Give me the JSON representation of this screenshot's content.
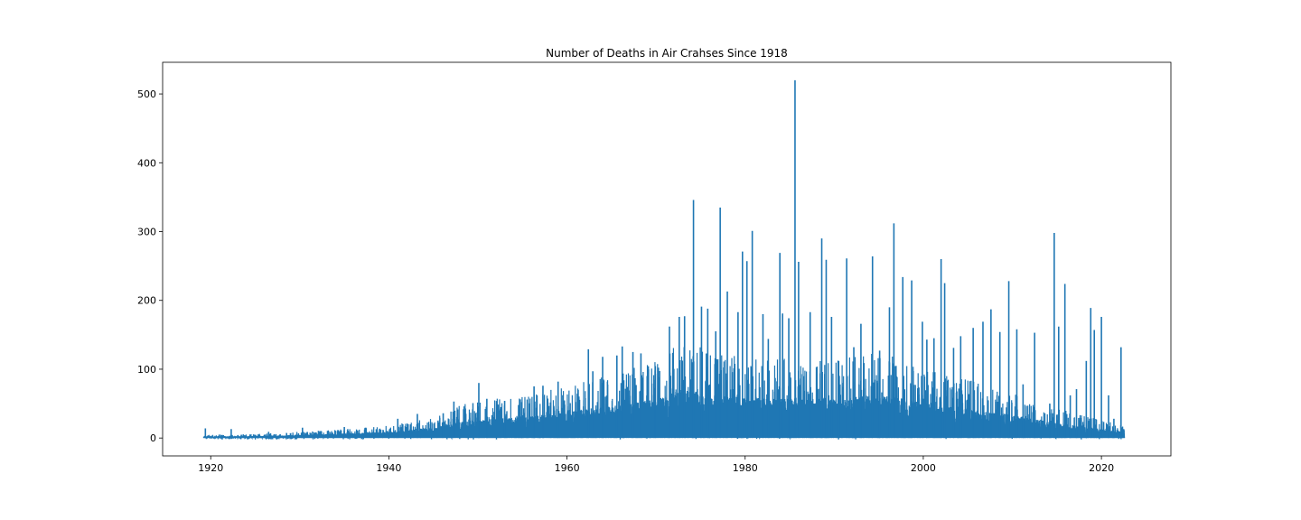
{
  "chart_data": {
    "type": "line",
    "title": "Number of Deaths in Air Crahses Since 1918",
    "xlabel": "",
    "ylabel": "",
    "xlim": [
      1914.6,
      2027.8
    ],
    "ylim": [
      -26,
      546
    ],
    "xticks": [
      1920,
      1940,
      1960,
      1980,
      2000,
      2020
    ],
    "xtick_labels": [
      "1920",
      "1940",
      "1960",
      "1980",
      "2000",
      "2020"
    ],
    "yticks": [
      0,
      100,
      200,
      300,
      400,
      500
    ],
    "ytick_labels": [
      "0",
      "100",
      "200",
      "300",
      "400",
      "500"
    ],
    "grid": false,
    "legend": "none",
    "series_color": "#1f77b4",
    "x_range": [
      1919.2,
      2022.6
    ],
    "peaks": [
      {
        "x": 1919.4,
        "y": 14
      },
      {
        "x": 1922.3,
        "y": 13
      },
      {
        "x": 1926.5,
        "y": 9
      },
      {
        "x": 1930.3,
        "y": 15
      },
      {
        "x": 1935.0,
        "y": 16
      },
      {
        "x": 1941.0,
        "y": 28
      },
      {
        "x": 1943.2,
        "y": 35
      },
      {
        "x": 1946.1,
        "y": 36
      },
      {
        "x": 1947.3,
        "y": 53
      },
      {
        "x": 1950.1,
        "y": 80
      },
      {
        "x": 1951.0,
        "y": 57
      },
      {
        "x": 1953.0,
        "y": 54
      },
      {
        "x": 1956.3,
        "y": 75
      },
      {
        "x": 1957.3,
        "y": 76
      },
      {
        "x": 1959.0,
        "y": 82
      },
      {
        "x": 1962.4,
        "y": 129
      },
      {
        "x": 1962.9,
        "y": 97
      },
      {
        "x": 1964.0,
        "y": 118
      },
      {
        "x": 1965.6,
        "y": 120
      },
      {
        "x": 1966.2,
        "y": 133
      },
      {
        "x": 1967.4,
        "y": 125
      },
      {
        "x": 1968.3,
        "y": 123
      },
      {
        "x": 1969.9,
        "y": 98
      },
      {
        "x": 1971.5,
        "y": 162
      },
      {
        "x": 1972.6,
        "y": 176
      },
      {
        "x": 1973.2,
        "y": 177
      },
      {
        "x": 1974.2,
        "y": 346
      },
      {
        "x": 1975.1,
        "y": 191
      },
      {
        "x": 1975.8,
        "y": 188
      },
      {
        "x": 1976.7,
        "y": 155
      },
      {
        "x": 1977.2,
        "y": 335
      },
      {
        "x": 1978.0,
        "y": 213
      },
      {
        "x": 1979.2,
        "y": 183
      },
      {
        "x": 1979.7,
        "y": 271
      },
      {
        "x": 1980.2,
        "y": 257
      },
      {
        "x": 1980.8,
        "y": 301
      },
      {
        "x": 1982.0,
        "y": 180
      },
      {
        "x": 1982.6,
        "y": 144
      },
      {
        "x": 1983.9,
        "y": 269
      },
      {
        "x": 1984.2,
        "y": 181
      },
      {
        "x": 1984.9,
        "y": 174
      },
      {
        "x": 1985.6,
        "y": 520
      },
      {
        "x": 1986.0,
        "y": 256
      },
      {
        "x": 1987.3,
        "y": 183
      },
      {
        "x": 1988.6,
        "y": 290
      },
      {
        "x": 1989.1,
        "y": 259
      },
      {
        "x": 1989.7,
        "y": 176
      },
      {
        "x": 1990.5,
        "y": 112
      },
      {
        "x": 1991.4,
        "y": 261
      },
      {
        "x": 1992.2,
        "y": 132
      },
      {
        "x": 1993.0,
        "y": 166
      },
      {
        "x": 1994.3,
        "y": 264
      },
      {
        "x": 1995.1,
        "y": 127
      },
      {
        "x": 1996.2,
        "y": 190
      },
      {
        "x": 1996.7,
        "y": 312
      },
      {
        "x": 1997.7,
        "y": 234
      },
      {
        "x": 1998.7,
        "y": 229
      },
      {
        "x": 1999.9,
        "y": 169
      },
      {
        "x": 2000.4,
        "y": 143
      },
      {
        "x": 2001.2,
        "y": 145
      },
      {
        "x": 2002.0,
        "y": 260
      },
      {
        "x": 2002.4,
        "y": 225
      },
      {
        "x": 2003.4,
        "y": 131
      },
      {
        "x": 2004.2,
        "y": 148
      },
      {
        "x": 2005.6,
        "y": 160
      },
      {
        "x": 2006.7,
        "y": 169
      },
      {
        "x": 2007.6,
        "y": 187
      },
      {
        "x": 2008.6,
        "y": 154
      },
      {
        "x": 2009.6,
        "y": 228
      },
      {
        "x": 2010.5,
        "y": 158
      },
      {
        "x": 2011.2,
        "y": 78
      },
      {
        "x": 2012.5,
        "y": 153
      },
      {
        "x": 2014.2,
        "y": 50
      },
      {
        "x": 2014.7,
        "y": 298
      },
      {
        "x": 2015.2,
        "y": 162
      },
      {
        "x": 2015.9,
        "y": 224
      },
      {
        "x": 2016.5,
        "y": 62
      },
      {
        "x": 2017.2,
        "y": 71
      },
      {
        "x": 2018.3,
        "y": 112
      },
      {
        "x": 2018.8,
        "y": 189
      },
      {
        "x": 2019.2,
        "y": 157
      },
      {
        "x": 2020.0,
        "y": 176
      },
      {
        "x": 2020.8,
        "y": 62
      },
      {
        "x": 2021.4,
        "y": 28
      },
      {
        "x": 2022.2,
        "y": 132
      }
    ],
    "envelope": [
      {
        "x": 1919.2,
        "y": 3
      },
      {
        "x": 1925,
        "y": 4
      },
      {
        "x": 1930,
        "y": 6
      },
      {
        "x": 1935,
        "y": 9
      },
      {
        "x": 1940,
        "y": 12
      },
      {
        "x": 1945,
        "y": 20
      },
      {
        "x": 1948,
        "y": 32
      },
      {
        "x": 1952,
        "y": 38
      },
      {
        "x": 1956,
        "y": 42
      },
      {
        "x": 1960,
        "y": 52
      },
      {
        "x": 1965,
        "y": 62
      },
      {
        "x": 1970,
        "y": 75
      },
      {
        "x": 1973,
        "y": 95
      },
      {
        "x": 1976,
        "y": 85
      },
      {
        "x": 1980,
        "y": 78
      },
      {
        "x": 1985,
        "y": 78
      },
      {
        "x": 1990,
        "y": 75
      },
      {
        "x": 1995,
        "y": 85
      },
      {
        "x": 1998,
        "y": 75
      },
      {
        "x": 2002,
        "y": 62
      },
      {
        "x": 2006,
        "y": 55
      },
      {
        "x": 2010,
        "y": 45
      },
      {
        "x": 2014,
        "y": 32
      },
      {
        "x": 2018,
        "y": 22
      },
      {
        "x": 2022.6,
        "y": 12
      }
    ]
  }
}
